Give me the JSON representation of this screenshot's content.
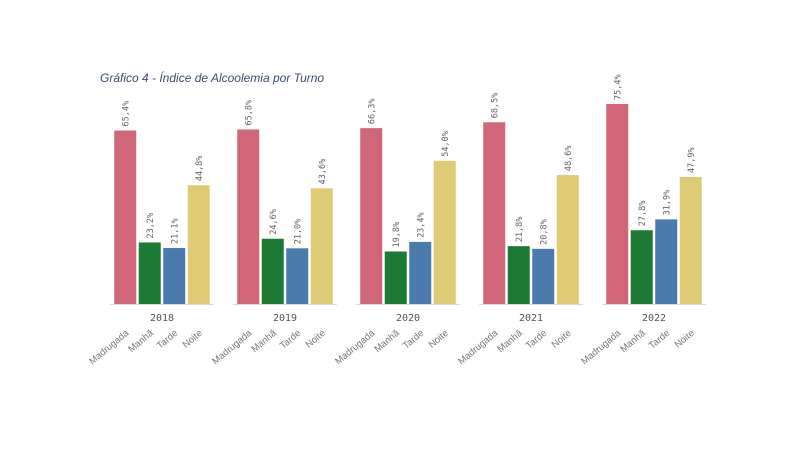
{
  "chart_data": {
    "type": "bar",
    "title": "Gráfico 4 - Índice de Alcoolemia por Turno",
    "categories": [
      "2018",
      "2019",
      "2020",
      "2021",
      "2022"
    ],
    "series": [
      {
        "name": "Madrugada",
        "color": "#d06677",
        "values": [
          65.4,
          65.8,
          66.3,
          68.5,
          75.4
        ],
        "value_labels": [
          "65,4%",
          "65,8%",
          "66,3%",
          "68,5%",
          "75,4%"
        ]
      },
      {
        "name": "Manhã",
        "color": "#1d7a35",
        "values": [
          23.2,
          24.6,
          19.8,
          21.8,
          27.8
        ],
        "value_labels": [
          "23,2%",
          "24,6%",
          "19,8%",
          "21,8%",
          "27,8%"
        ]
      },
      {
        "name": "Tarde",
        "color": "#4b7bad",
        "values": [
          21.1,
          21.0,
          23.4,
          20.8,
          31.9
        ],
        "value_labels": [
          "21,1%",
          "21,0%",
          "23,4%",
          "20,8%",
          "31,9%"
        ]
      },
      {
        "name": "Noite",
        "color": "#dfcb76",
        "values": [
          44.8,
          43.6,
          54.0,
          48.6,
          47.9
        ],
        "value_labels": [
          "44,8%",
          "43,6%",
          "54,0%",
          "48,6%",
          "47,9%"
        ]
      }
    ]
  }
}
